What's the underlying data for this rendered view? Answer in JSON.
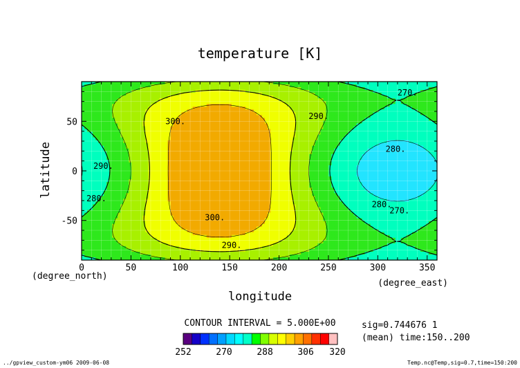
{
  "chart_data": {
    "type": "contour",
    "title": "temperature [K]",
    "xlabel": "longitude",
    "ylabel": "latitude",
    "x_units": "(degree_east)",
    "y_units": "(degree_north)",
    "xlim": [
      0,
      360
    ],
    "ylim": [
      -90,
      90
    ],
    "x_ticks": [
      0,
      50,
      100,
      150,
      200,
      250,
      300,
      350
    ],
    "y_ticks": [
      -50,
      0,
      50
    ],
    "contour_interval_text": "CONTOUR INTERVAL = 5.000E+00",
    "contour_labels": [
      {
        "text": "300.",
        "lon": 95,
        "lat": 50
      },
      {
        "text": "300.",
        "lon": 135,
        "lat": -47
      },
      {
        "text": "290.",
        "lon": 240,
        "lat": 55
      },
      {
        "text": "290.",
        "lon": 152,
        "lat": -75
      },
      {
        "text": "290.",
        "lon": 22,
        "lat": 5
      },
      {
        "text": "280.",
        "lon": 318,
        "lat": 22
      },
      {
        "text": "280.",
        "lon": 15,
        "lat": -28
      },
      {
        "text": "280.",
        "lon": 304,
        "lat": -34
      },
      {
        "text": "270.",
        "lon": 330,
        "lat": 79
      },
      {
        "text": "270.",
        "lon": 322,
        "lat": -40
      }
    ],
    "levels": [
      252,
      256,
      260,
      264,
      268,
      272,
      276,
      280,
      284,
      288,
      292,
      296,
      300,
      304,
      308,
      312,
      316,
      320
    ],
    "level_colors": [
      "#5a0080",
      "#1400c8",
      "#0030ff",
      "#0070ff",
      "#00a0ff",
      "#00d8ff",
      "#00ffff",
      "#00ffc8",
      "#00ff00",
      "#80ff00",
      "#d8ff00",
      "#ffff00",
      "#ffd000",
      "#ffa000",
      "#ff7000",
      "#ff3000",
      "#ff0000",
      "#ffc0c0"
    ],
    "colorbar_labels": [
      "252",
      "270",
      "288",
      "306",
      "320"
    ],
    "fill_colors": [
      "#0a6cf0",
      "#18aaff",
      "#22e4ff",
      "#00ffbe",
      "#2ee81c",
      "#a8f000",
      "#f0ff00",
      "#f2aa00"
    ],
    "grid": true,
    "legend": "none"
  },
  "meta": {
    "sig_line": "sig=0.744676 1",
    "mean_line": "(mean) time:150..200",
    "footer_left": "../gpview_custom-ym06  2009-06-08",
    "footer_right": "Temp.nc@Temp,sig=0.7,time=150:200"
  }
}
